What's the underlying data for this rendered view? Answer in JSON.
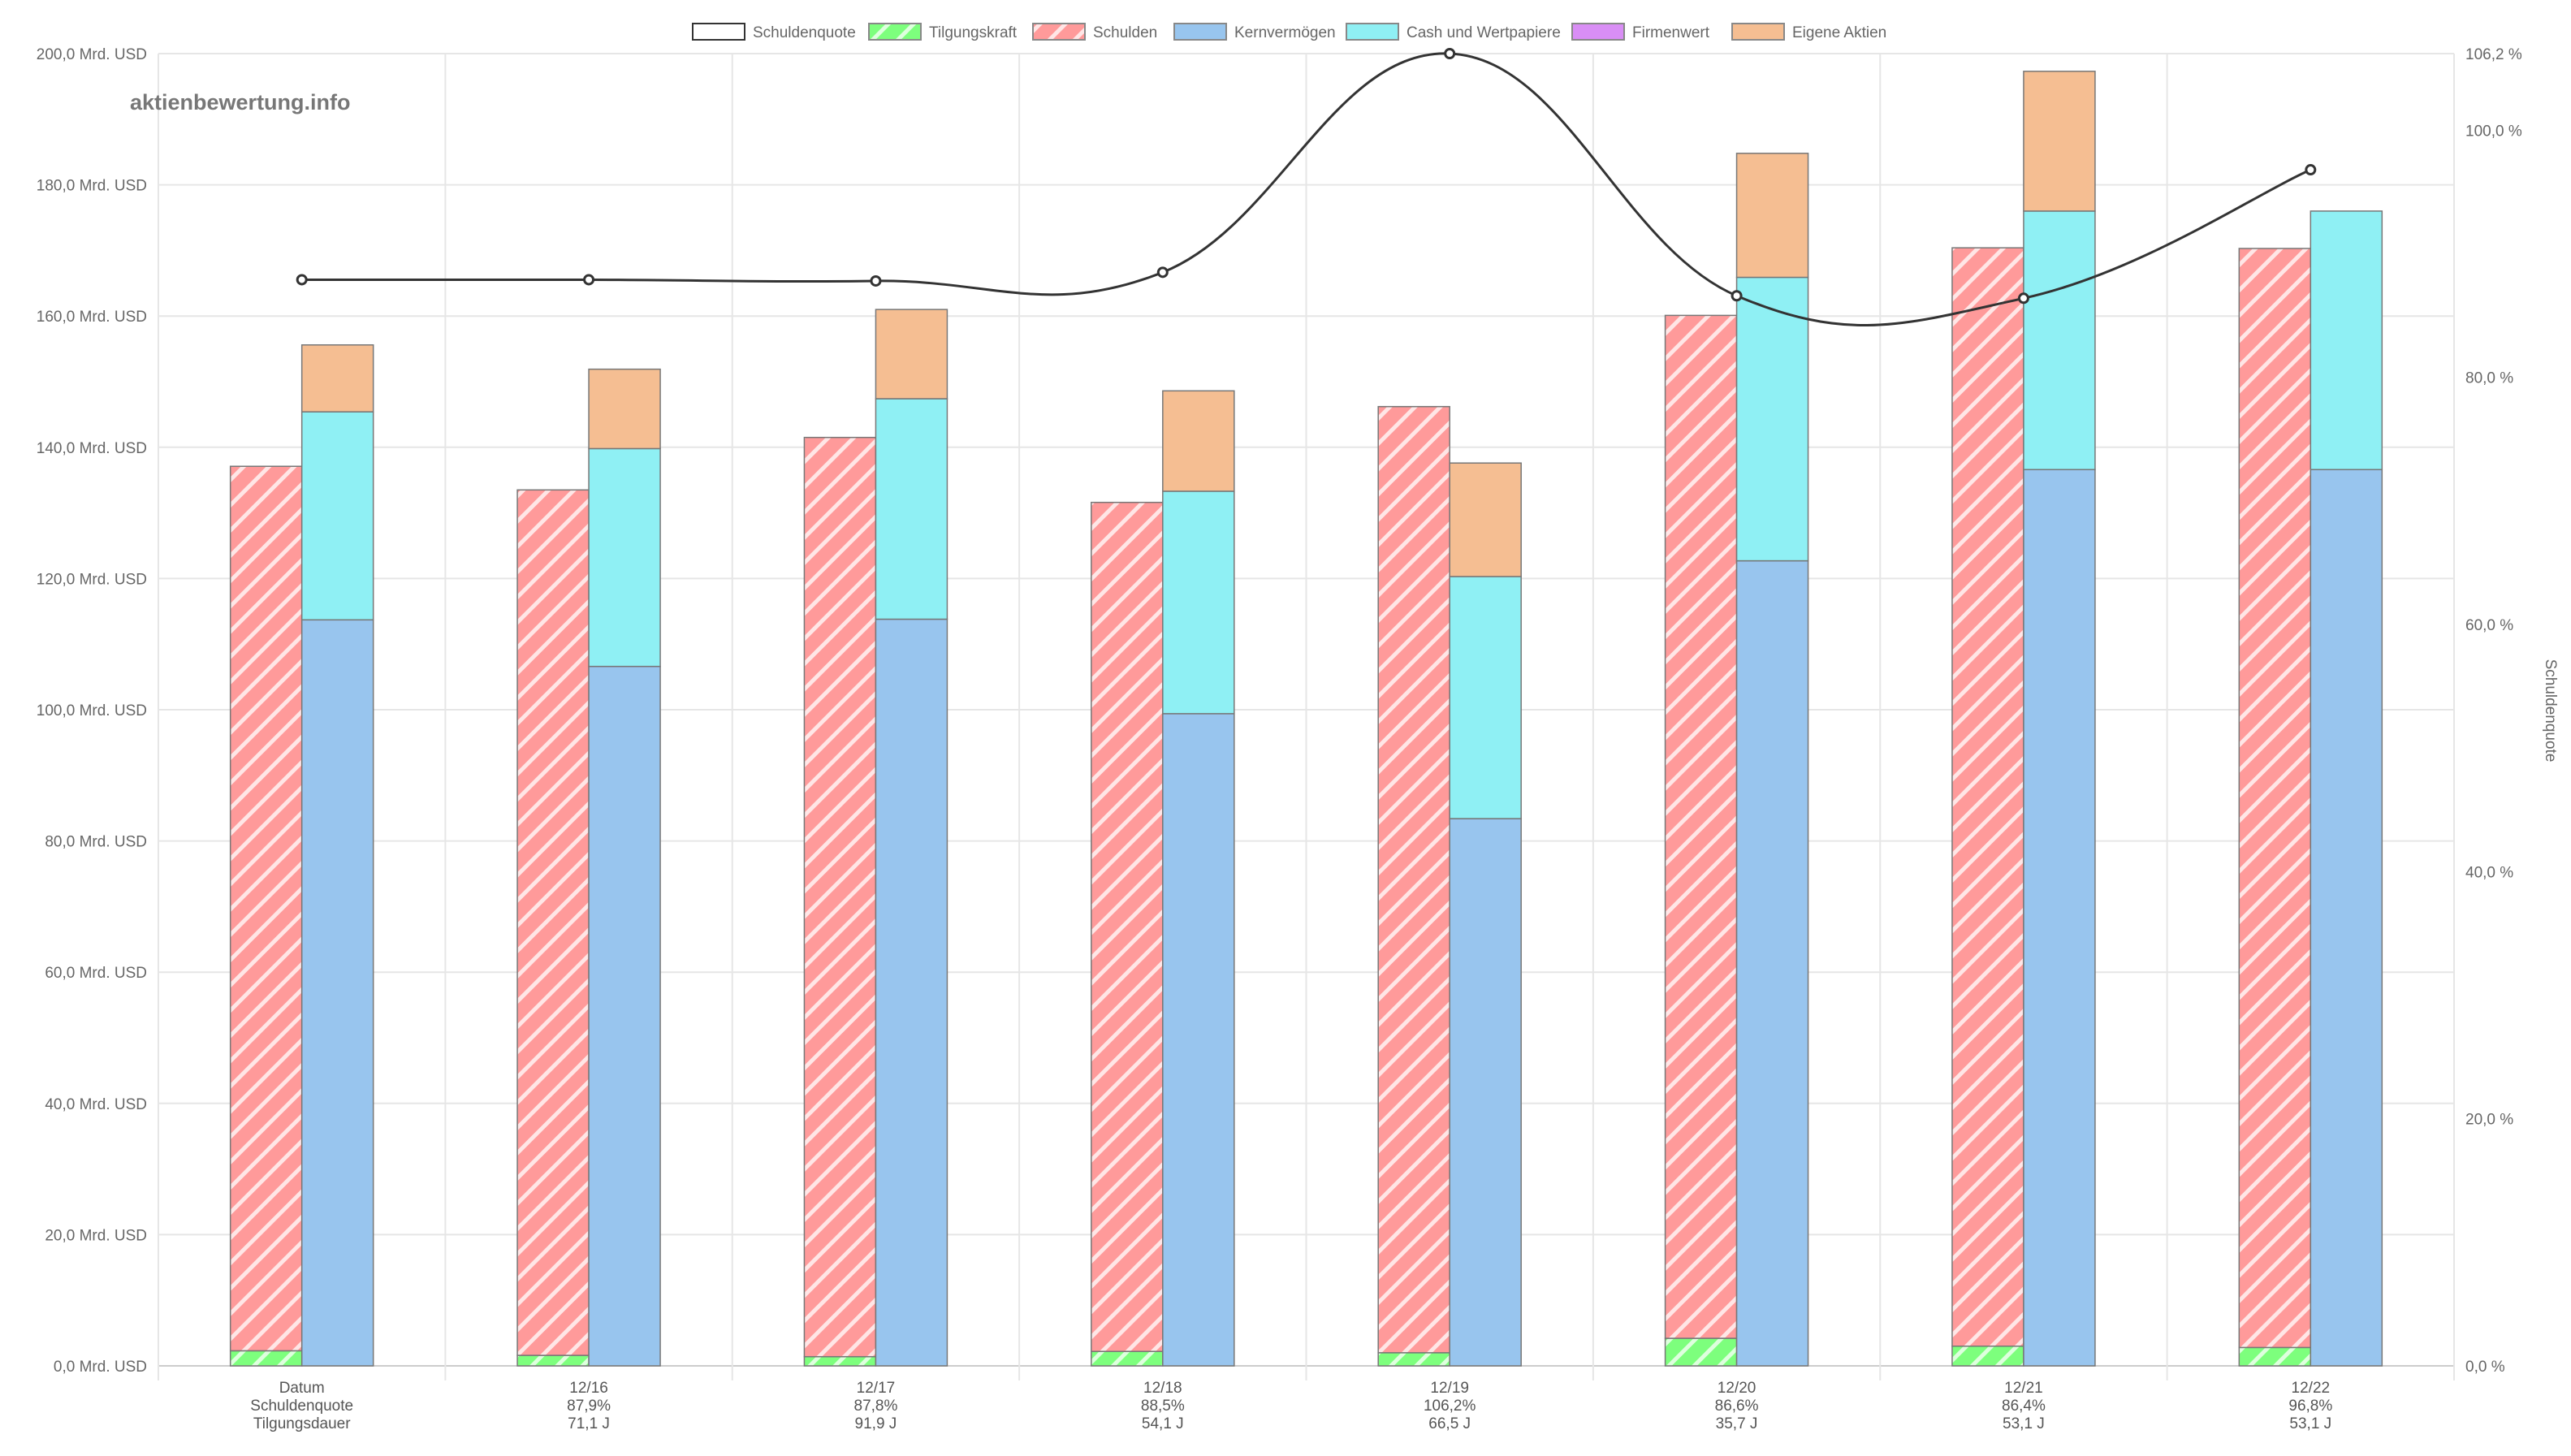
{
  "watermark": "aktienbewertung.info",
  "colors": {
    "schulden": "#ff9a9a",
    "tilgungskraft": "#7dff7d",
    "kernvermoegen": "#98c5ee",
    "cash": "#8ff0f4",
    "firmenwert": "#d98ef5",
    "eigene_aktien": "#f5be92",
    "line": "#333333"
  },
  "legend": [
    {
      "label": "Schuldenquote",
      "key": "line"
    },
    {
      "label": "Tilgungskraft",
      "key": "tilgungskraft"
    },
    {
      "label": "Schulden",
      "key": "schulden"
    },
    {
      "label": "Kernvermögen",
      "key": "kernvermoegen"
    },
    {
      "label": "Cash und Wertpapiere",
      "key": "cash"
    },
    {
      "label": "Firmenwert",
      "key": "firmenwert"
    },
    {
      "label": "Eigene Aktien",
      "key": "eigene_aktien"
    }
  ],
  "chart_data": {
    "type": "bar",
    "categories": [
      "Datum",
      "12/16",
      "12/17",
      "12/18",
      "12/19",
      "12/20",
      "12/21",
      "12/22"
    ],
    "row_labels": {
      "schuldenquote": [
        "Schuldenquote",
        "87,9%",
        "87,8%",
        "88,5%",
        "106,2%",
        "86,6%",
        "86,4%",
        "96,8%"
      ],
      "tilgungsdauer": [
        "Tilgungsdauer",
        "71,1 J",
        "91,9 J",
        "54,1 J",
        "66,5 J",
        "35,7 J",
        "53,1 J",
        "53,1 J"
      ]
    },
    "series": [
      {
        "name": "Tilgungskraft",
        "stack": "left",
        "values": [
          2.3,
          1.6,
          1.4,
          2.2,
          2.0,
          4.2,
          3.0,
          2.8
        ]
      },
      {
        "name": "Schulden",
        "stack": "left",
        "values": [
          134.8,
          131.9,
          140.1,
          129.4,
          144.2,
          155.9,
          167.4,
          167.5
        ]
      },
      {
        "name": "Kernvermögen",
        "stack": "right",
        "values": [
          113.7,
          106.6,
          113.8,
          99.4,
          83.4,
          122.7,
          136.6,
          136.6
        ]
      },
      {
        "name": "Cash und Wertpapiere",
        "stack": "right",
        "values": [
          31.7,
          33.2,
          33.6,
          33.9,
          36.9,
          43.2,
          39.4,
          39.4
        ]
      },
      {
        "name": "Firmenwert",
        "stack": "right",
        "values": [
          0,
          0,
          0,
          0,
          0,
          0,
          0,
          0
        ]
      },
      {
        "name": "Eigene Aktien",
        "stack": "right",
        "values": [
          10.2,
          12.1,
          13.6,
          15.3,
          17.3,
          18.9,
          21.3,
          0
        ]
      },
      {
        "name": "Schuldenquote",
        "type": "line",
        "axis": "right",
        "values": [
          87.9,
          87.9,
          87.8,
          88.5,
          106.2,
          86.6,
          86.4,
          96.8
        ]
      }
    ],
    "y_left": {
      "min": 0,
      "max": 200,
      "ticks": [
        "0,0 Mrd. USD",
        "20,0 Mrd. USD",
        "40,0 Mrd. USD",
        "60,0 Mrd. USD",
        "80,0 Mrd. USD",
        "100,0 Mrd. USD",
        "120,0 Mrd. USD",
        "140,0 Mrd. USD",
        "160,0 Mrd. USD",
        "180,0 Mrd. USD",
        "200,0 Mrd. USD"
      ]
    },
    "y_right": {
      "title": "Schuldenquote",
      "min": 0,
      "max": 106.2,
      "ticks": [
        {
          "value": 0,
          "label": "0,0 %"
        },
        {
          "value": 20,
          "label": "20,0 %"
        },
        {
          "value": 40,
          "label": "40,0 %"
        },
        {
          "value": 60,
          "label": "60,0 %"
        },
        {
          "value": 80,
          "label": "80,0 %"
        },
        {
          "value": 100,
          "label": "100,0 %"
        },
        {
          "value": 106.2,
          "label": "106,2 %"
        }
      ]
    },
    "grid": true,
    "legend_position": "top"
  }
}
